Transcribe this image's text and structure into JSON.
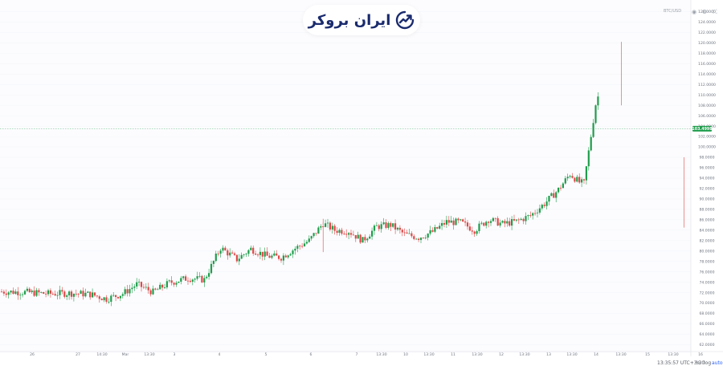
{
  "logo": {
    "text": "ایران بروکر",
    "icon": "trend-up-arrow-icon",
    "color": "#1a2b6d"
  },
  "top_bar": {
    "menu_label": "BTC/USD",
    "icons": [
      "camera-icon",
      "settings-icon",
      "fullscreen-icon"
    ]
  },
  "status_bar": {
    "time": "13:35:57 UTC+3:30",
    "percent_label": "%",
    "log_label": "log",
    "auto_label": "auto"
  },
  "colors": {
    "up": "#1f9d4c",
    "down": "#e04848",
    "price_line": "#1f9d4c",
    "resistance": "#444444",
    "background": "#ffffff",
    "grid": "#f4f6f9"
  },
  "chart_data": {
    "type": "candlestick",
    "title": "",
    "xlabel": "",
    "ylabel": "",
    "ylim": [
      61000,
      127000
    ],
    "y_ticks": [
      "62.0000",
      "64.0000",
      "66.0000",
      "68.0000",
      "70.0000",
      "72.0000",
      "74.0000",
      "76.0000",
      "78.0000",
      "80.0000",
      "82.0000",
      "84.0000",
      "86.0000",
      "88.0000",
      "90.0000",
      "92.0000",
      "94.0000",
      "96.0000",
      "98.0000",
      "100.0000",
      "102.0000",
      "104.0000",
      "106.0000",
      "108.0000",
      "110.0000",
      "112.0000",
      "114.0000",
      "116.0000",
      "118.0000",
      "120.0000",
      "122.0000",
      "124.0000",
      "126.0000"
    ],
    "x_ticks": [
      "26",
      "27",
      "14:30",
      "Mar",
      "13:30",
      "3",
      "4",
      "5",
      "6",
      "7",
      "13:30",
      "10",
      "13:30",
      "11",
      "13:30",
      "12",
      "13:30",
      "13",
      "13:30",
      "14",
      "13:30",
      "15",
      "13:30",
      "16"
    ],
    "last_price": 103.4998,
    "last_price_label": "103.4998",
    "resistance_level": 102.0,
    "anchors": [
      [
        0,
        72.2
      ],
      [
        10,
        72.1
      ],
      [
        20,
        71.8
      ],
      [
        30,
        71.9
      ],
      [
        38,
        71.7
      ],
      [
        45,
        70.8
      ],
      [
        52,
        71.8
      ],
      [
        58,
        73.6
      ],
      [
        65,
        72.1
      ],
      [
        72,
        73.9
      ],
      [
        80,
        74.8
      ],
      [
        87,
        74.5
      ],
      [
        94,
        80.6
      ],
      [
        101,
        78.4
      ],
      [
        107,
        80.4
      ],
      [
        114,
        79.0
      ],
      [
        120,
        78.8
      ],
      [
        126,
        80.5
      ],
      [
        132,
        82.0
      ],
      [
        138,
        85.3
      ],
      [
        143,
        84.0
      ],
      [
        149,
        83.8
      ],
      [
        155,
        82.0
      ],
      [
        161,
        84.7
      ],
      [
        167,
        85.0
      ],
      [
        173,
        83.2
      ],
      [
        179,
        82.6
      ],
      [
        185,
        83.7
      ],
      [
        191,
        85.6
      ],
      [
        197,
        85.5
      ],
      [
        203,
        84.0
      ],
      [
        209,
        86.1
      ],
      [
        215,
        85.2
      ],
      [
        221,
        85.7
      ],
      [
        227,
        86.8
      ],
      [
        233,
        89.1
      ],
      [
        239,
        91.8
      ],
      [
        244,
        94.8
      ],
      [
        248,
        93.2
      ],
      [
        250,
        93.0
      ],
      [
        255,
        108.2
      ],
      [
        258,
        112.6
      ],
      [
        260,
        115.5
      ],
      [
        263,
        116.0
      ],
      [
        266,
        116.8
      ],
      [
        269,
        109.1
      ],
      [
        272,
        106.9
      ],
      [
        275,
        106.0
      ],
      [
        279,
        104.2
      ],
      [
        283,
        103.5
      ],
      [
        287,
        101.3
      ],
      [
        291,
        100.3
      ],
      [
        293,
        90.0
      ],
      [
        295,
        87.9
      ],
      [
        298,
        90.5
      ],
      [
        302,
        94.7
      ],
      [
        306,
        93.5
      ],
      [
        310,
        92.7
      ],
      [
        314,
        91.0
      ],
      [
        318,
        92.3
      ],
      [
        322,
        89.8
      ],
      [
        326,
        86.5
      ],
      [
        330,
        89.0
      ],
      [
        334,
        91.2
      ],
      [
        338,
        88.2
      ],
      [
        342,
        88.3
      ],
      [
        346,
        87.4
      ],
      [
        350,
        89.6
      ],
      [
        354,
        92.5
      ],
      [
        358,
        90.3
      ],
      [
        362,
        91.5
      ],
      [
        366,
        92.4
      ],
      [
        370,
        93.1
      ],
      [
        376,
        98.8
      ],
      [
        382,
        99.3
      ],
      [
        386,
        97.1
      ],
      [
        390,
        96.5
      ],
      [
        394,
        98.6
      ],
      [
        398,
        99.5
      ],
      [
        402,
        100.8
      ],
      [
        406,
        101.1
      ],
      [
        410,
        100.3
      ],
      [
        414,
        101.6
      ],
      [
        418,
        101.2
      ],
      [
        422,
        101.8
      ],
      [
        426,
        100.2
      ],
      [
        430,
        99.3
      ],
      [
        434,
        100.8
      ],
      [
        438,
        102.3
      ],
      [
        442,
        103.1
      ],
      [
        446,
        103.6
      ]
    ]
  }
}
